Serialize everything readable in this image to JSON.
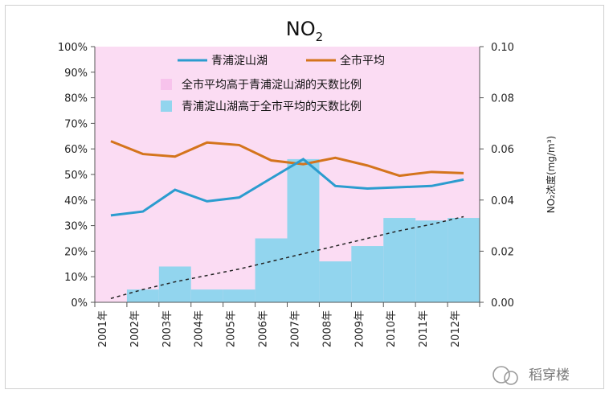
{
  "chart_data": {
    "type": "bar",
    "title": "NO",
    "title_subscript": "2",
    "categories": [
      "2001年",
      "2002年",
      "2003年",
      "2004年",
      "2005年",
      "2006年",
      "2007年",
      "2008年",
      "2009年",
      "2010年",
      "2011年",
      "2012年"
    ],
    "left_axis": {
      "ylim": [
        0,
        100
      ],
      "ticks": [
        "0%",
        "10%",
        "20%",
        "30%",
        "40%",
        "50%",
        "60%",
        "70%",
        "80%",
        "90%",
        "100%"
      ]
    },
    "right_axis": {
      "label": "NO₂浓度(mg/m³)",
      "ylim": [
        0,
        0.1
      ],
      "ticks": [
        "0.00",
        "0.02",
        "0.04",
        "0.06",
        "0.08",
        "0.10"
      ]
    },
    "series": [
      {
        "name": "全市平均高于青浦淀山湖的天数比例",
        "kind": "bar",
        "axis": "left",
        "color": "#fbdcf3",
        "values": [
          100,
          95,
          86,
          95,
          95,
          75,
          44,
          84,
          78,
          67,
          68,
          67
        ]
      },
      {
        "name": "青浦淀山湖高于全市平均的天数比例",
        "kind": "bar",
        "axis": "left",
        "color": "#92d5ee",
        "values": [
          0,
          5,
          14,
          5,
          5,
          25,
          56,
          16,
          22,
          33,
          32,
          33
        ]
      },
      {
        "name": "青浦淀山湖",
        "kind": "line",
        "axis": "right",
        "color": "#2b9ccf",
        "values": [
          0.034,
          0.0355,
          0.044,
          0.0395,
          0.041,
          0.0485,
          0.056,
          0.0455,
          0.0445,
          0.045,
          0.0455,
          0.048
        ]
      },
      {
        "name": "全市平均",
        "kind": "line",
        "axis": "right",
        "color": "#d4741c",
        "values": [
          0.063,
          0.058,
          0.057,
          0.0625,
          0.0615,
          0.0555,
          0.054,
          0.0565,
          0.0535,
          0.0495,
          0.051,
          0.0505
        ]
      },
      {
        "name": "trend",
        "kind": "dashed-line",
        "axis": "left",
        "color": "#222222",
        "values": [
          1.5,
          5,
          8,
          10.5,
          13,
          16,
          19,
          22,
          25,
          28,
          30.5,
          33.5
        ]
      }
    ],
    "legend": [
      "青浦淀山湖",
      "全市平均",
      "全市平均高于青浦淀山湖的天数比例",
      "青浦淀山湖高于全市平均的天数比例"
    ]
  },
  "watermark": "稻穿楼"
}
